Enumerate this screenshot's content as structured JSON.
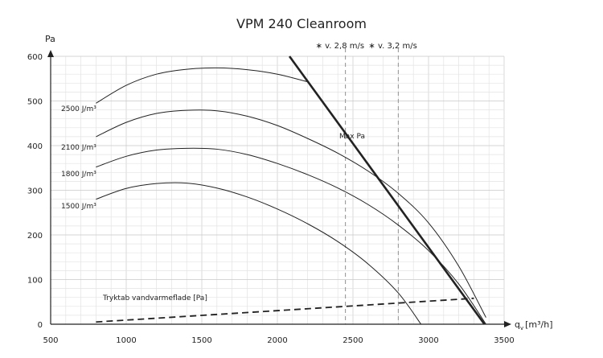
{
  "chart_data": {
    "type": "line",
    "title": "VPM 240 Cleanroom",
    "xlabel": "q",
    "xlabel_sub": "v",
    "xlabel_unit": "[m³/h]",
    "ylabel": "Pa",
    "xlim": [
      500,
      3500
    ],
    "ylim": [
      0,
      600
    ],
    "x_ticks": [
      500,
      1000,
      1500,
      2000,
      2500,
      3000,
      3500
    ],
    "y_ticks": [
      0,
      100,
      200,
      300,
      400,
      500,
      600
    ],
    "grid": true,
    "series": [
      {
        "name": "2500 J/m³",
        "x": [
          800,
          1000,
          1200,
          1400,
          1600,
          1800,
          2000,
          2200
        ],
        "y": [
          495,
          535,
          560,
          571,
          574,
          570,
          560,
          543
        ]
      },
      {
        "name": "2100 J/m³",
        "x": [
          800,
          1000,
          1200,
          1400,
          1600,
          1800,
          2000,
          2200,
          2400,
          2600,
          2800,
          3000,
          3200,
          3380
        ],
        "y": [
          420,
          452,
          472,
          479,
          478,
          466,
          445,
          416,
          383,
          343,
          293,
          227,
          130,
          15
        ]
      },
      {
        "name": "1800 J/m³",
        "x": [
          800,
          1000,
          1200,
          1400,
          1600,
          1800,
          2000,
          2200,
          2400,
          2600,
          2800,
          3000,
          3200,
          3380
        ],
        "y": [
          352,
          376,
          390,
          394,
          392,
          380,
          360,
          335,
          305,
          268,
          222,
          165,
          90,
          0
        ]
      },
      {
        "name": "1500 J/m³",
        "x": [
          800,
          1000,
          1200,
          1400,
          1600,
          1800,
          2000,
          2200,
          2400,
          2600,
          2800,
          2950
        ],
        "y": [
          280,
          304,
          315,
          316,
          305,
          285,
          258,
          225,
          185,
          135,
          70,
          0
        ]
      },
      {
        "name": "Max Pa",
        "x": [
          2080,
          3370
        ],
        "y": [
          600,
          0
        ]
      },
      {
        "name": "Tryktab vandvarmeflade [Pa]",
        "x": [
          800,
          3300
        ],
        "y": [
          5,
          58
        ]
      }
    ],
    "reference_lines": [
      {
        "label": "∗ v. 2,8 m/s",
        "x": 2450
      },
      {
        "label": "∗ v. 3,2 m/s",
        "x": 2800
      }
    ]
  }
}
